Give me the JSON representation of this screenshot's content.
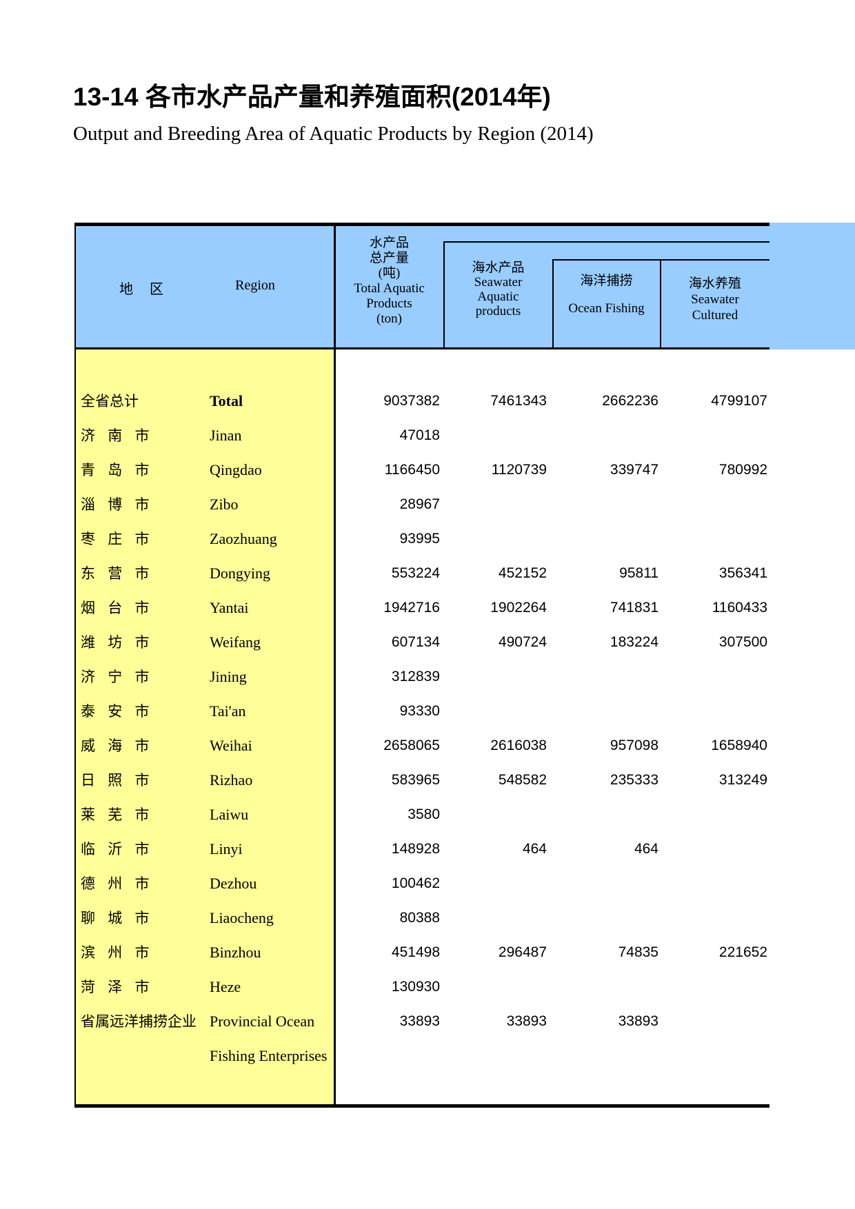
{
  "page": {
    "title_zh": "13-14  各市水产品产量和养殖面积(2014年)",
    "title_en": "Output and Breeding Area of Aquatic Products by Region (2014)"
  },
  "colors": {
    "header_bg": "#99CCFF",
    "region_col_bg": "#FFFF99",
    "border": "#000000"
  },
  "table": {
    "header": {
      "region_zh": "地　区",
      "region_en": "Region",
      "total_aquatic": "水产品\n总产量\n(吨)\nTotal Aquatic\nProducts\n(ton)",
      "seawater_group": "海水产品\nSeawater\nAquatic\nproducts",
      "ocean_fishing": "海洋捕捞\n\nOcean Fishing",
      "seawater_cultured": "海水养殖\nSeawater\nCultured"
    },
    "rows": [
      {
        "zh": "全省总计",
        "en": "Total",
        "bold": true,
        "total": "9037382",
        "seawater": "7461343",
        "ocean": "2662236",
        "cultured": "4799107"
      },
      {
        "zh": "济 南 市",
        "en": "Jinan",
        "total": "47018",
        "seawater": "",
        "ocean": "",
        "cultured": ""
      },
      {
        "zh": "青 岛 市",
        "en": "Qingdao",
        "total": "1166450",
        "seawater": "1120739",
        "ocean": "339747",
        "cultured": "780992"
      },
      {
        "zh": "淄 博 市",
        "en": "Zibo",
        "total": "28967",
        "seawater": "",
        "ocean": "",
        "cultured": ""
      },
      {
        "zh": "枣 庄 市",
        "en": "Zaozhuang",
        "total": "93995",
        "seawater": "",
        "ocean": "",
        "cultured": ""
      },
      {
        "zh": "东 营 市",
        "en": "Dongying",
        "total": "553224",
        "seawater": "452152",
        "ocean": "95811",
        "cultured": "356341"
      },
      {
        "zh": "烟 台 市",
        "en": "Yantai",
        "total": "1942716",
        "seawater": "1902264",
        "ocean": "741831",
        "cultured": "1160433"
      },
      {
        "zh": "潍 坊 市",
        "en": "Weifang",
        "total": "607134",
        "seawater": "490724",
        "ocean": "183224",
        "cultured": "307500"
      },
      {
        "zh": "济 宁 市",
        "en": "Jining",
        "total": "312839",
        "seawater": "",
        "ocean": "",
        "cultured": ""
      },
      {
        "zh": "泰 安 市",
        "en": "Tai'an",
        "total": "93330",
        "seawater": "",
        "ocean": "",
        "cultured": ""
      },
      {
        "zh": "威 海 市",
        "en": "Weihai",
        "total": "2658065",
        "seawater": "2616038",
        "ocean": "957098",
        "cultured": "1658940"
      },
      {
        "zh": "日 照 市",
        "en": "Rizhao",
        "total": "583965",
        "seawater": "548582",
        "ocean": "235333",
        "cultured": "313249"
      },
      {
        "zh": "莱 芜 市",
        "en": "Laiwu",
        "total": "3580",
        "seawater": "",
        "ocean": "",
        "cultured": ""
      },
      {
        "zh": "临 沂 市",
        "en": "Linyi",
        "total": "148928",
        "seawater": "464",
        "ocean": "464",
        "cultured": ""
      },
      {
        "zh": "德 州 市",
        "en": "Dezhou",
        "total": "100462",
        "seawater": "",
        "ocean": "",
        "cultured": ""
      },
      {
        "zh": "聊 城 市",
        "en": "Liaocheng",
        "total": "80388",
        "seawater": "",
        "ocean": "",
        "cultured": ""
      },
      {
        "zh": "滨 州 市",
        "en": "Binzhou",
        "total": "451498",
        "seawater": "296487",
        "ocean": "74835",
        "cultured": "221652"
      },
      {
        "zh": "菏 泽 市",
        "en": "Heze",
        "total": "130930",
        "seawater": "",
        "ocean": "",
        "cultured": ""
      },
      {
        "zh": "省属远洋捕捞企业",
        "en": "Provincial Ocean",
        "total": "33893",
        "seawater": "33893",
        "ocean": "33893",
        "cultured": ""
      },
      {
        "zh": "",
        "en": "Fishing Enterprises",
        "total": "",
        "seawater": "",
        "ocean": "",
        "cultured": ""
      }
    ]
  }
}
